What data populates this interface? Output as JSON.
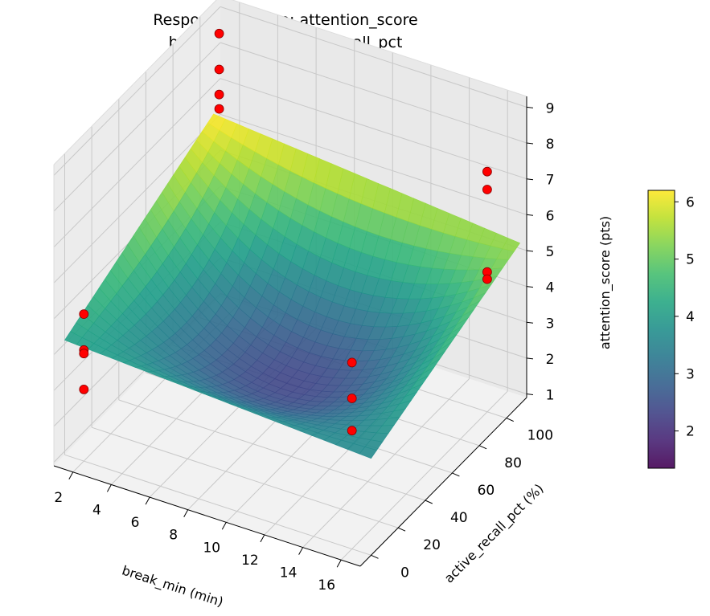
{
  "chart_data": {
    "type": "surface3d",
    "title": "Response Surface: attention_score",
    "subtitle": "break_min vs active_recall_pct",
    "xlabel": "break_min (min)",
    "ylabel": "active_recall_pct (%)",
    "zlabel": "attention_score (pts)",
    "x_ticks": [
      "2",
      "4",
      "6",
      "8",
      "10",
      "12",
      "14",
      "16"
    ],
    "y_ticks": [
      "0",
      "20",
      "40",
      "60",
      "80",
      "100"
    ],
    "z_ticks": [
      "1",
      "2",
      "3",
      "4",
      "5",
      "6",
      "7",
      "8",
      "9"
    ],
    "xlim": [
      1,
      17
    ],
    "ylim": [
      -8,
      115
    ],
    "zlim": [
      0.9,
      9.3
    ],
    "grid": true,
    "colormap": "viridis",
    "colorbar": {
      "ticks": [
        "2",
        "3",
        "4",
        "5",
        "6"
      ],
      "range": [
        1.35,
        6.2
      ]
    },
    "surface_corner_values": {
      "break_min_1_recall_0": 4.1,
      "break_min_17_recall_0": 3.6,
      "break_min_1_recall_110": 6.2,
      "break_min_17_recall_110": 5.4,
      "minimum": 1.4
    },
    "points": [
      {
        "x": 2,
        "y": 100,
        "z": 9.0
      },
      {
        "x": 2,
        "y": 100,
        "z": 8.0
      },
      {
        "x": 2,
        "y": 100,
        "z": 7.3
      },
      {
        "x": 2,
        "y": 100,
        "z": 6.9
      },
      {
        "x": 2,
        "y": 0,
        "z": 5.0
      },
      {
        "x": 2,
        "y": 0,
        "z": 4.0
      },
      {
        "x": 2,
        "y": 0,
        "z": 3.9
      },
      {
        "x": 2,
        "y": 0,
        "z": 2.9
      },
      {
        "x": 16,
        "y": 100,
        "z": 7.6
      },
      {
        "x": 16,
        "y": 100,
        "z": 7.1
      },
      {
        "x": 16,
        "y": 100,
        "z": 4.8
      },
      {
        "x": 16,
        "y": 100,
        "z": 4.6
      },
      {
        "x": 16,
        "y": 0,
        "z": 6.1
      },
      {
        "x": 16,
        "y": 0,
        "z": 5.1
      },
      {
        "x": 16,
        "y": 0,
        "z": 4.2
      }
    ],
    "point_color": "#ff0000",
    "pane_color": "#f2f2f2",
    "grid_color": "#c8c8c8"
  }
}
